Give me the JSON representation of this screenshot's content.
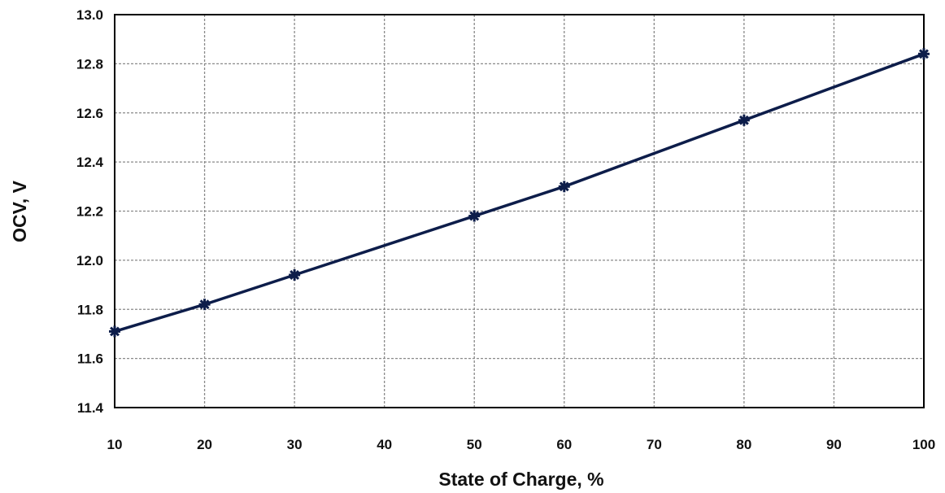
{
  "chart_data": {
    "type": "line",
    "xlabel": "State of Charge, %",
    "ylabel": "OCV, V",
    "xlim": [
      10,
      100
    ],
    "ylim": [
      11.4,
      13.0
    ],
    "x_ticks": [
      "10",
      "20",
      "30",
      "40",
      "50",
      "60",
      "70",
      "80",
      "90",
      "100"
    ],
    "y_ticks": [
      "11.4",
      "11.6",
      "11.8",
      "12.0",
      "12.2",
      "12.4",
      "12.6",
      "12.8",
      "13.0"
    ],
    "grid": true,
    "series": [
      {
        "x": [
          10,
          20,
          30,
          50,
          60,
          80,
          100
        ],
        "y": [
          11.71,
          11.82,
          11.94,
          12.18,
          12.3,
          12.57,
          12.84
        ],
        "color": "#0d1d4a",
        "marker": "star"
      }
    ]
  }
}
